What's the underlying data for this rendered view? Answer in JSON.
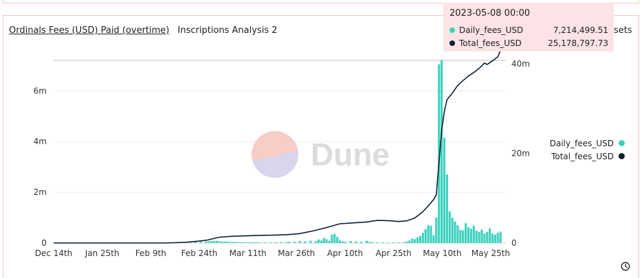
{
  "header": {
    "title": "Ordinals Fees (USD) Paid (overtime)",
    "subtitle": "Inscriptions Analysis 2",
    "partial_label": "sets"
  },
  "tooltip": {
    "date": "2023-05-08 00:00",
    "rows": [
      {
        "name": "Daily_fees_USD",
        "value": "7,214,499.51"
      },
      {
        "name": "Total_fees_USD",
        "value": "25,178,797.73"
      }
    ]
  },
  "legend": [
    {
      "name": "Daily_fees_USD",
      "color": "#3cd2be"
    },
    {
      "name": "Total_fees_USD",
      "color": "#0e1c2e"
    }
  ],
  "watermark": "Dune",
  "icons": {
    "clock": "clock-icon"
  },
  "chart_data": {
    "type": "bar+line",
    "title": "Ordinals Fees (USD) Paid (overtime)",
    "x_tick_labels": [
      "Dec 14th",
      "Jan 25th",
      "Feb 9th",
      "Feb 24th",
      "Mar 11th",
      "Mar 26th",
      "Apr 10th",
      "Apr 25th",
      "May 10th",
      "May 25th"
    ],
    "y_left_ticks": [
      "0",
      "2m",
      "4m",
      "6m"
    ],
    "y_left_tick_values": [
      0,
      2000000,
      4000000,
      6000000
    ],
    "y_left_range": [
      0,
      7200000
    ],
    "y_right_ticks": [
      "0",
      "20m",
      "40m"
    ],
    "y_right_tick_values": [
      0,
      20000000,
      40000000
    ],
    "y_right_range": [
      0,
      40800000
    ],
    "x_range": [
      "2022-12-14",
      "2023-06-01"
    ],
    "series": [
      {
        "name": "Daily_fees_USD",
        "axis": "left",
        "kind": "bar",
        "color": "#3cd2be",
        "points": [
          [
            "2023-02-01",
            20000
          ],
          [
            "2023-02-03",
            30000
          ],
          [
            "2023-02-05",
            40000
          ],
          [
            "2023-02-07",
            50000
          ],
          [
            "2023-02-09",
            60000
          ],
          [
            "2023-02-10",
            70000
          ],
          [
            "2023-02-11",
            80000
          ],
          [
            "2023-02-12",
            75000
          ],
          [
            "2023-02-13",
            85000
          ],
          [
            "2023-02-14",
            70000
          ],
          [
            "2023-02-15",
            60000
          ],
          [
            "2023-02-16",
            55000
          ],
          [
            "2023-02-17",
            50000
          ],
          [
            "2023-02-18",
            45000
          ],
          [
            "2023-02-19",
            40000
          ],
          [
            "2023-02-20",
            38000
          ],
          [
            "2023-02-21",
            35000
          ],
          [
            "2023-02-22",
            33000
          ],
          [
            "2023-02-23",
            30000
          ],
          [
            "2023-02-24",
            30000
          ],
          [
            "2023-02-25",
            28000
          ],
          [
            "2023-02-26",
            27000
          ],
          [
            "2023-02-27",
            26000
          ],
          [
            "2023-02-28",
            25000
          ],
          [
            "2023-03-01",
            25000
          ],
          [
            "2023-03-03",
            24000
          ],
          [
            "2023-03-05",
            26000
          ],
          [
            "2023-03-07",
            30000
          ],
          [
            "2023-03-09",
            35000
          ],
          [
            "2023-03-11",
            40000
          ],
          [
            "2023-03-12",
            45000
          ],
          [
            "2023-03-14",
            50000
          ],
          [
            "2023-03-16",
            80000
          ],
          [
            "2023-03-18",
            60000
          ],
          [
            "2023-03-20",
            90000
          ],
          [
            "2023-03-22",
            70000
          ],
          [
            "2023-03-23",
            140000
          ],
          [
            "2023-03-24",
            100000
          ],
          [
            "2023-03-25",
            200000
          ],
          [
            "2023-03-26",
            150000
          ],
          [
            "2023-03-27",
            80000
          ],
          [
            "2023-03-28",
            330000
          ],
          [
            "2023-03-29",
            360000
          ],
          [
            "2023-03-30",
            240000
          ],
          [
            "2023-03-31",
            100000
          ],
          [
            "2023-04-01",
            60000
          ],
          [
            "2023-04-02",
            50000
          ],
          [
            "2023-04-04",
            80000
          ],
          [
            "2023-04-06",
            60000
          ],
          [
            "2023-04-08",
            50000
          ],
          [
            "2023-04-10",
            90000
          ],
          [
            "2023-04-11",
            40000
          ],
          [
            "2023-04-12",
            35000
          ],
          [
            "2023-04-14",
            30000
          ],
          [
            "2023-04-16",
            25000
          ],
          [
            "2023-04-18",
            20000
          ],
          [
            "2023-04-20",
            20000
          ],
          [
            "2023-04-22",
            25000
          ],
          [
            "2023-04-24",
            35000
          ],
          [
            "2023-04-25",
            60000
          ],
          [
            "2023-04-26",
            100000
          ],
          [
            "2023-04-27",
            180000
          ],
          [
            "2023-04-28",
            150000
          ],
          [
            "2023-04-29",
            220000
          ],
          [
            "2023-04-30",
            280000
          ],
          [
            "2023-05-01",
            400000
          ],
          [
            "2023-05-02",
            550000
          ],
          [
            "2023-05-03",
            700000
          ],
          [
            "2023-05-04",
            680000
          ],
          [
            "2023-05-05",
            300000
          ],
          [
            "2023-05-06",
            1000000
          ],
          [
            "2023-05-07",
            7050000
          ],
          [
            "2023-05-08",
            7214499.51
          ],
          [
            "2023-05-09",
            4150000
          ],
          [
            "2023-05-10",
            2700000
          ],
          [
            "2023-05-11",
            1250000
          ],
          [
            "2023-05-12",
            1000000
          ],
          [
            "2023-05-13",
            850000
          ],
          [
            "2023-05-14",
            700000
          ],
          [
            "2023-05-15",
            520000
          ],
          [
            "2023-05-16",
            500000
          ],
          [
            "2023-05-17",
            780000
          ],
          [
            "2023-05-18",
            620000
          ],
          [
            "2023-05-19",
            560000
          ],
          [
            "2023-05-20",
            680000
          ],
          [
            "2023-05-21",
            480000
          ],
          [
            "2023-05-22",
            430000
          ],
          [
            "2023-05-23",
            530000
          ],
          [
            "2023-05-24",
            370000
          ],
          [
            "2023-05-25",
            440000
          ],
          [
            "2023-05-26",
            580000
          ],
          [
            "2023-05-27",
            370000
          ],
          [
            "2023-05-28",
            330000
          ],
          [
            "2023-05-29",
            400000
          ],
          [
            "2023-05-30",
            450000
          ]
        ]
      },
      {
        "name": "Total_fees_USD",
        "axis": "right",
        "kind": "line",
        "color": "#0e1c2e",
        "points": [
          [
            "2022-12-14",
            0
          ],
          [
            "2023-01-25",
            0
          ],
          [
            "2023-02-01",
            150000
          ],
          [
            "2023-02-05",
            350000
          ],
          [
            "2023-02-09",
            600000
          ],
          [
            "2023-02-14",
            1300000
          ],
          [
            "2023-02-19",
            1500000
          ],
          [
            "2023-02-24",
            1600000
          ],
          [
            "2023-03-01",
            1700000
          ],
          [
            "2023-03-06",
            1750000
          ],
          [
            "2023-03-11",
            1850000
          ],
          [
            "2023-03-16",
            2100000
          ],
          [
            "2023-03-21",
            2700000
          ],
          [
            "2023-03-26",
            3450000
          ],
          [
            "2023-03-31",
            4300000
          ],
          [
            "2023-04-05",
            4500000
          ],
          [
            "2023-04-10",
            4700000
          ],
          [
            "2023-04-14",
            5050000
          ],
          [
            "2023-04-18",
            5000000
          ],
          [
            "2023-04-22",
            4800000
          ],
          [
            "2023-04-25",
            4950000
          ],
          [
            "2023-04-28",
            5600000
          ],
          [
            "2023-05-01",
            7000000
          ],
          [
            "2023-05-03",
            8300000
          ],
          [
            "2023-05-05",
            9700000
          ],
          [
            "2023-05-06",
            10800000
          ],
          [
            "2023-05-07",
            17900000
          ],
          [
            "2023-05-08",
            25178797.73
          ],
          [
            "2023-05-09",
            29300000
          ],
          [
            "2023-05-10",
            32000000
          ],
          [
            "2023-05-12",
            33500000
          ],
          [
            "2023-05-14",
            35200000
          ],
          [
            "2023-05-16",
            36300000
          ],
          [
            "2023-05-18",
            37300000
          ],
          [
            "2023-05-20",
            38100000
          ],
          [
            "2023-05-22",
            39000000
          ],
          [
            "2023-05-24",
            40200000
          ],
          [
            "2023-05-25",
            39900000
          ],
          [
            "2023-05-27",
            40700000
          ],
          [
            "2023-05-29",
            41600000
          ],
          [
            "2023-05-30",
            43000000
          ]
        ]
      }
    ],
    "legend": [
      "Daily_fees_USD",
      "Total_fees_USD"
    ],
    "legend_position": "right",
    "grid": true
  }
}
